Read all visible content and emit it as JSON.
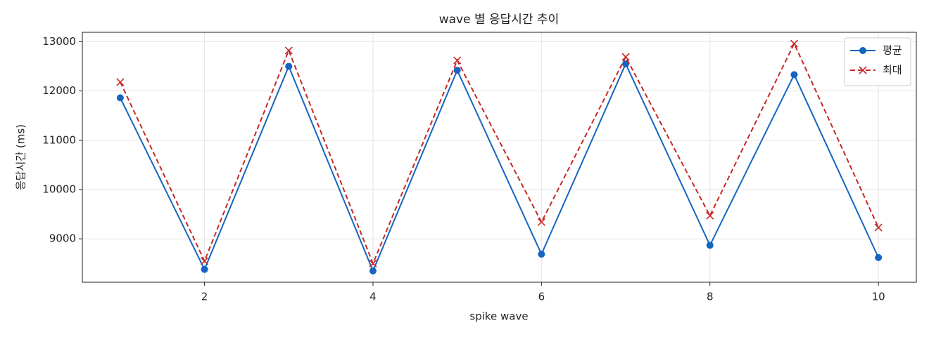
{
  "chart_data": {
    "type": "line",
    "title": "wave 별 응답시간 추이",
    "x_label": "spike wave",
    "y_label": "응답시간 (ms)",
    "x": [
      1,
      2,
      3,
      4,
      5,
      6,
      7,
      8,
      9,
      10
    ],
    "series": [
      {
        "name": "평균",
        "color": "#1565c0",
        "linestyle": "solid",
        "marker": "circle",
        "values": [
          11860,
          8380,
          12500,
          8350,
          12420,
          8690,
          12550,
          8870,
          12330,
          8620
        ]
      },
      {
        "name": "최대",
        "color": "#c62828",
        "linestyle": "dashed",
        "marker": "x",
        "values": [
          12180,
          8550,
          12820,
          8500,
          12620,
          9340,
          12690,
          9470,
          12960,
          9230
        ]
      }
    ],
    "xlim": [
      0.55,
      10.45
    ],
    "xticks": [
      2,
      4,
      6,
      8,
      10
    ],
    "ylim": [
      8120,
      13190
    ],
    "yticks": [
      9000,
      10000,
      11000,
      12000,
      13000
    ],
    "grid": true,
    "legend": "upper right"
  }
}
